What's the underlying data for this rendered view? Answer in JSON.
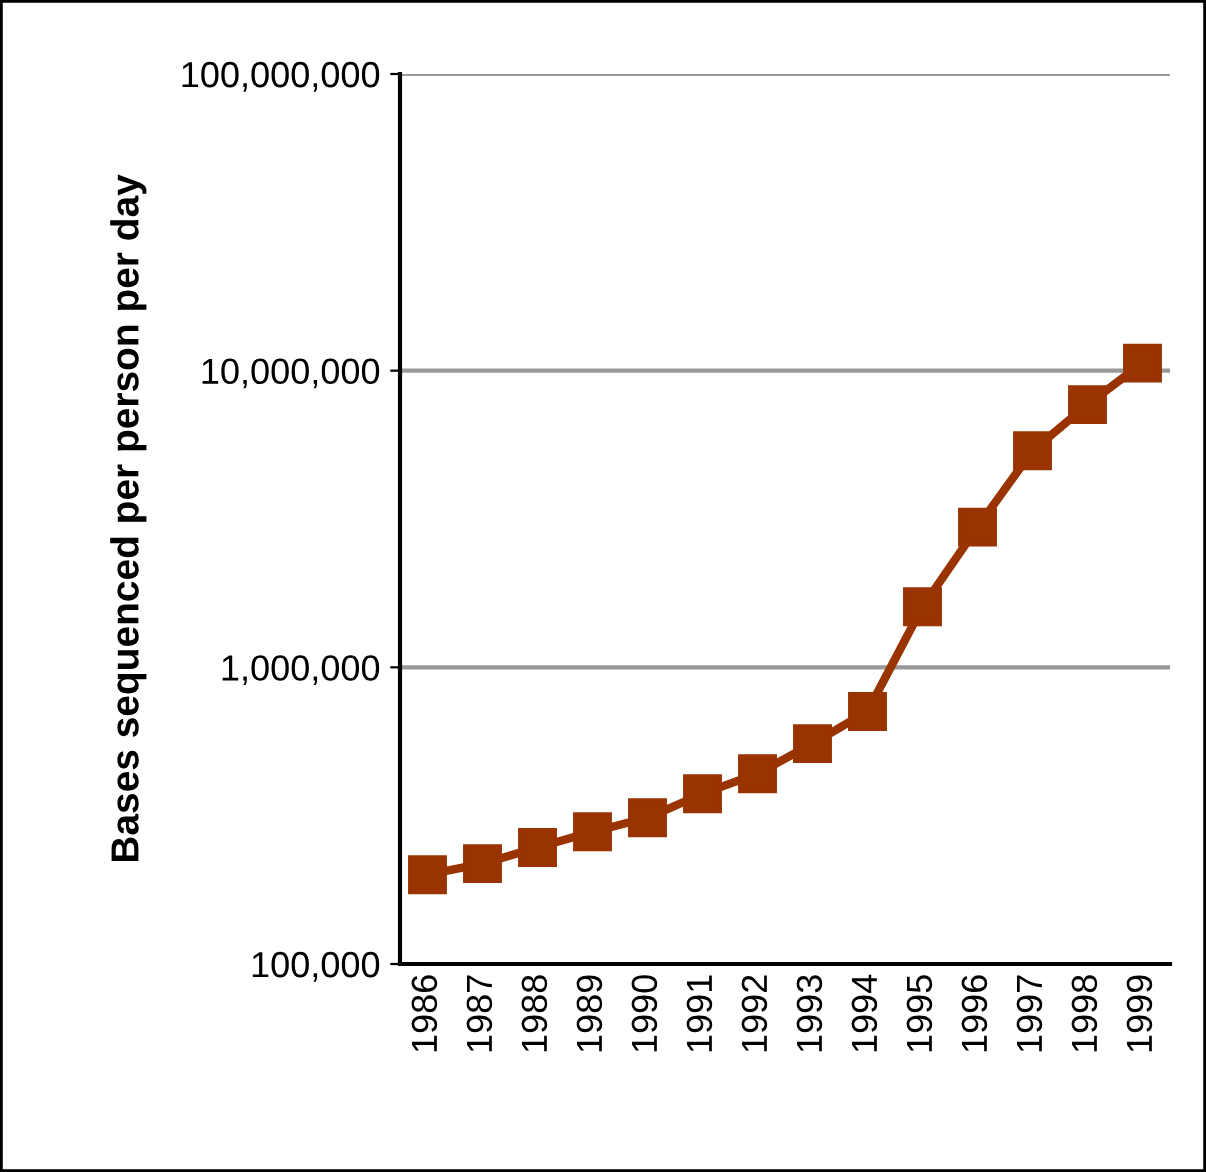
{
  "chart_data": {
    "type": "line",
    "ylabel": "Bases sequenced per person per day",
    "categories": [
      "1986",
      "1987",
      "1988",
      "1989",
      "1990",
      "1991",
      "1992",
      "1993",
      "1994",
      "1995",
      "1996",
      "1997",
      "1998",
      "1999"
    ],
    "series": [
      {
        "color": "#993300",
        "values": [
          200000,
          218000,
          247000,
          279000,
          311000,
          375000,
          438000,
          553000,
          710000,
          1600000,
          2970000,
          5370000,
          7680000,
          10600000
        ]
      }
    ],
    "log": "y",
    "ylim": [
      100000,
      100000000
    ],
    "yticks": [
      {
        "value": 100000,
        "label": "100,000"
      },
      {
        "value": 1000000,
        "label": "1,000,000"
      },
      {
        "value": 10000000,
        "label": "10,000,000"
      },
      {
        "value": 100000000,
        "label": "100,000,000"
      }
    ],
    "grid": "y",
    "marker": "square",
    "line_style": "solid"
  }
}
